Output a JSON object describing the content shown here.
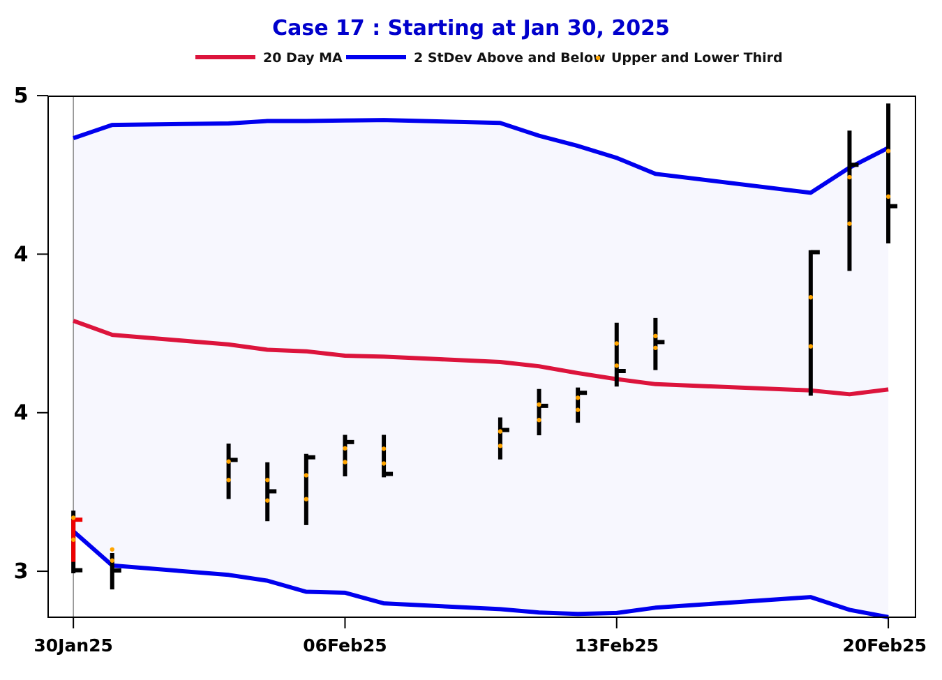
{
  "chart_data": {
    "type": "ohlc",
    "title": "Case 17 :  Starting at Jan 30, 2025",
    "legend": {
      "position": "top",
      "entries": [
        {
          "label": "20 Day MA",
          "color": "#dc143c",
          "kind": "line"
        },
        {
          "label": "2 StDev Above and Below",
          "color": "#0000ee",
          "kind": "line"
        },
        {
          "label": "Upper  and Lower Third",
          "color": "#ffa500",
          "kind": "dot"
        }
      ]
    },
    "colors": {
      "title": "#0000cc",
      "ma": "#dc143c",
      "band": "#0000ee",
      "band_fill": "#f7f7fe",
      "bars": "#000000",
      "first_bar": "#ee0000",
      "dots": "#ffa500",
      "vline": "#888888"
    },
    "x_ticks": [
      {
        "label": "30Jan25",
        "day": 0
      },
      {
        "label": "06Feb25",
        "day": 7
      },
      {
        "label": "13Feb25",
        "day": 14
      },
      {
        "label": "20Feb25",
        "day": 21
      }
    ],
    "y_tick_labels": [
      {
        "label": "5",
        "value": 5.0
      },
      {
        "label": "4",
        "value": 4.5
      },
      {
        "label": "4",
        "value": 4.0
      },
      {
        "label": "3",
        "value": 3.5
      }
    ],
    "ylim": [
      3.355,
      4.998
    ],
    "xlim": [
      -0.65,
      21.7
    ],
    "vline_day": 0,
    "bars": [
      {
        "day": 0,
        "open": 3.6626,
        "high": 3.6913,
        "low": 3.4936,
        "close": 3.5032,
        "body_high": 3.6626,
        "body_low": 3.5296
      },
      {
        "day": 1,
        "open": 3.5025,
        "high": 3.5574,
        "low": 3.4427,
        "close": 3.5025
      },
      {
        "day": 4,
        "open": 3.8511,
        "high": 3.9028,
        "low": 3.7277,
        "close": 3.8511
      },
      {
        "day": 5,
        "open": 3.7521,
        "high": 3.8435,
        "low": 3.6579,
        "close": 3.7521
      },
      {
        "day": 6,
        "open": 3.8594,
        "high": 3.8701,
        "low": 3.6457,
        "close": 3.8594
      },
      {
        "day": 7,
        "open": 3.9074,
        "high": 3.9302,
        "low": 3.7993,
        "close": 3.9074
      },
      {
        "day": 8,
        "open": 3.8069,
        "high": 3.9302,
        "low": 3.7962,
        "close": 3.8069
      },
      {
        "day": 11,
        "open": 3.9455,
        "high": 3.9851,
        "low": 3.8527,
        "close": 3.9455
      },
      {
        "day": 12,
        "open": 4.0217,
        "high": 4.0749,
        "low": 3.9288,
        "close": 4.0217
      },
      {
        "day": 13,
        "open": 4.0628,
        "high": 4.0795,
        "low": 3.9683,
        "close": 4.0628
      },
      {
        "day": 14,
        "open": 4.1314,
        "high": 4.2837,
        "low": 4.0825,
        "close": 4.1314
      },
      {
        "day": 15,
        "open": 4.2228,
        "high": 4.2989,
        "low": 4.1344,
        "close": 4.2228
      },
      {
        "day": 19,
        "open": 4.5063,
        "high": 4.5124,
        "low": 4.0536,
        "close": 4.5063
      },
      {
        "day": 20,
        "open": 4.7817,
        "high": 4.8898,
        "low": 4.4469,
        "close": 4.7817
      },
      {
        "day": 21,
        "open": 4.6513,
        "high": 4.9751,
        "low": 4.5338,
        "close": 4.6513
      }
    ],
    "thirds": [
      {
        "day": 0,
        "upper": 3.6687,
        "lower": 3.5996
      },
      {
        "day": 1,
        "upper": 3.5688,
        "lower": 3.5337
      },
      {
        "day": 4,
        "upper": 3.8461,
        "lower": 3.7877
      },
      {
        "day": 5,
        "upper": 3.7877,
        "lower": 3.7231
      },
      {
        "day": 6,
        "upper": 3.8027,
        "lower": 3.7274
      },
      {
        "day": 7,
        "upper": 3.8877,
        "lower": 3.8442
      },
      {
        "day": 8,
        "upper": 3.8864,
        "lower": 3.8399
      },
      {
        "day": 11,
        "upper": 3.9409,
        "lower": 3.8954
      },
      {
        "day": 12,
        "upper": 4.0257,
        "lower": 3.9769
      },
      {
        "day": 13,
        "upper": 4.047,
        "lower": 4.0089
      },
      {
        "day": 14,
        "upper": 4.2183,
        "lower": 4.1484
      },
      {
        "day": 15,
        "upper": 4.2418,
        "lower": 4.2045
      },
      {
        "day": 19,
        "upper": 4.364,
        "lower": 4.2092
      },
      {
        "day": 20,
        "upper": 4.7427,
        "lower": 4.5962
      },
      {
        "day": 21,
        "upper": 4.8253,
        "lower": 4.6816
      }
    ],
    "ma_20": [
      {
        "day": 0,
        "value": 4.2899
      },
      {
        "day": 1,
        "value": 4.2456
      },
      {
        "day": 4,
        "value": 4.2152
      },
      {
        "day": 5,
        "value": 4.1985
      },
      {
        "day": 6,
        "value": 4.1936
      },
      {
        "day": 7,
        "value": 4.1797
      },
      {
        "day": 8,
        "value": 4.1767
      },
      {
        "day": 11,
        "value": 4.1601
      },
      {
        "day": 12,
        "value": 4.1464
      },
      {
        "day": 13,
        "value": 4.1251
      },
      {
        "day": 14,
        "value": 4.1058
      },
      {
        "day": 15,
        "value": 4.09
      },
      {
        "day": 19,
        "value": 4.0703
      },
      {
        "day": 20,
        "value": 4.0581
      },
      {
        "day": 21,
        "value": 4.0733
      }
    ],
    "band_upper": [
      {
        "day": 0,
        "value": 4.8659
      },
      {
        "day": 1,
        "value": 4.9077
      },
      {
        "day": 4,
        "value": 4.9123
      },
      {
        "day": 5,
        "value": 4.9199
      },
      {
        "day": 6,
        "value": 4.9199
      },
      {
        "day": 7,
        "value": 4.9214
      },
      {
        "day": 8,
        "value": 4.9229
      },
      {
        "day": 11,
        "value": 4.9138
      },
      {
        "day": 12,
        "value": 4.8735
      },
      {
        "day": 13,
        "value": 4.8415
      },
      {
        "day": 14,
        "value": 4.8035
      },
      {
        "day": 15,
        "value": 4.7533
      },
      {
        "day": 19,
        "value": 4.6937
      },
      {
        "day": 20,
        "value": 4.773
      },
      {
        "day": 21,
        "value": 4.8355
      }
    ],
    "band_lower": [
      {
        "day": 0,
        "value": 3.6261
      },
      {
        "day": 1,
        "value": 3.5181
      },
      {
        "day": 4,
        "value": 3.4885
      },
      {
        "day": 5,
        "value": 3.4703
      },
      {
        "day": 6,
        "value": 3.4353
      },
      {
        "day": 7,
        "value": 3.4323
      },
      {
        "day": 8,
        "value": 3.3988
      },
      {
        "day": 11,
        "value": 3.3806
      },
      {
        "day": 12,
        "value": 3.3699
      },
      {
        "day": 13,
        "value": 3.3654
      },
      {
        "day": 14,
        "value": 3.3684
      },
      {
        "day": 15,
        "value": 3.3851
      },
      {
        "day": 19,
        "value": 3.4185
      },
      {
        "day": 20,
        "value": 3.3783
      },
      {
        "day": 21,
        "value": 3.3555
      }
    ]
  }
}
